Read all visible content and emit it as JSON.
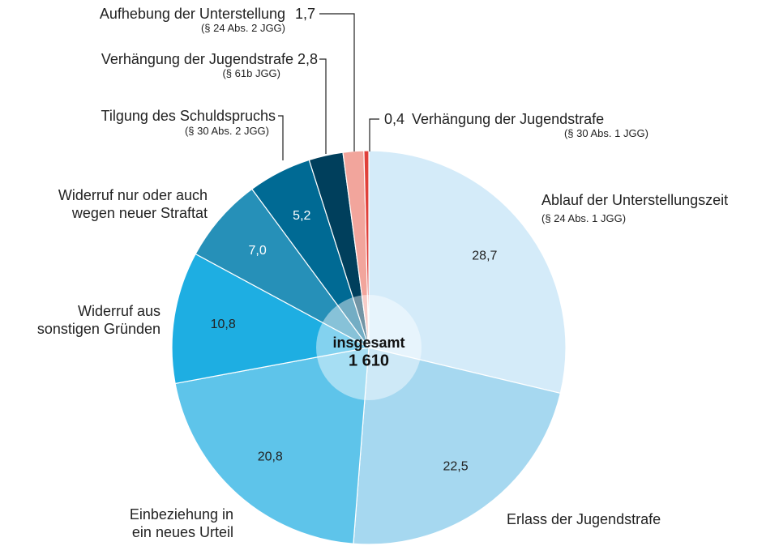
{
  "chart_data": {
    "type": "pie",
    "categories": [
      "Ablauf der Unterstellungszeit",
      "Erlass der Jugendstrafe",
      "Einbeziehung in\nein neues Urteil",
      "Widerruf aus\nsonstigen Gründen",
      "Widerruf nur oder auch\nwegen neuer Straftat",
      "Tilgung des Schuldspruchs",
      "Verhängung der Jugendstrafe",
      "Aufhebung der Unterstellung",
      "Verhängung der Jugendstrafe"
    ],
    "notes": [
      "(§ 24 Abs. 1 JGG)",
      null,
      null,
      null,
      null,
      "(§ 30 Abs. 2 JGG)",
      "(§ 61b JGG)",
      "(§ 24 Abs. 2 JGG)",
      "(§ 30 Abs. 1 JGG)"
    ],
    "values": [
      28.7,
      22.5,
      20.8,
      10.8,
      7.0,
      5.2,
      2.8,
      1.7,
      0.4
    ],
    "value_labels": [
      "28,7",
      "22,5",
      "20,8",
      "10,8",
      "7,0",
      "5,2",
      "2,8",
      "1,7",
      "0,4"
    ],
    "colors": [
      "#d4ebf9",
      "#a6d8f0",
      "#5ec4ea",
      "#1eaee2",
      "#2690b8",
      "#006a94",
      "#003f5c",
      "#f2a59c",
      "#e0403a"
    ],
    "center_title": "insgesamt",
    "center_value": "1 610"
  }
}
